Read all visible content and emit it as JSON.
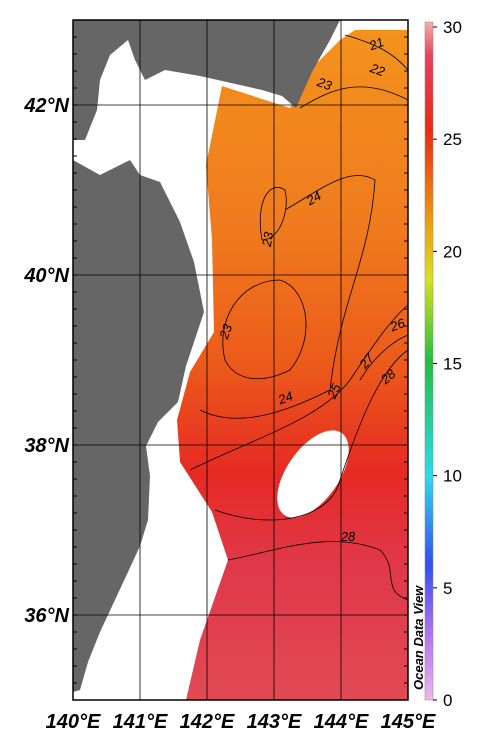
{
  "map": {
    "lonlim": [
      140,
      145
    ],
    "latlim": [
      35,
      43
    ],
    "xticks": [
      {
        "value": 140,
        "label": "140°E"
      },
      {
        "value": 141,
        "label": "141°E"
      },
      {
        "value": 142,
        "label": "142°E"
      },
      {
        "value": 143,
        "label": "143°E"
      },
      {
        "value": 144,
        "label": "144°E"
      },
      {
        "value": 145,
        "label": "145°E"
      }
    ],
    "yticks": [
      {
        "value": 36,
        "label": "36°N"
      },
      {
        "value": 38,
        "label": "38°N"
      },
      {
        "value": 40,
        "label": "40°N"
      },
      {
        "value": 42,
        "label": "42°N"
      }
    ],
    "contour_labels": [
      21,
      22,
      23,
      24,
      23,
      23,
      24,
      25,
      26,
      27,
      28,
      28
    ],
    "colorbar": {
      "lim": [
        0,
        30
      ],
      "ticks": [
        0,
        5,
        10,
        15,
        20,
        25,
        30
      ]
    },
    "credit": "Ocean Data View"
  }
}
